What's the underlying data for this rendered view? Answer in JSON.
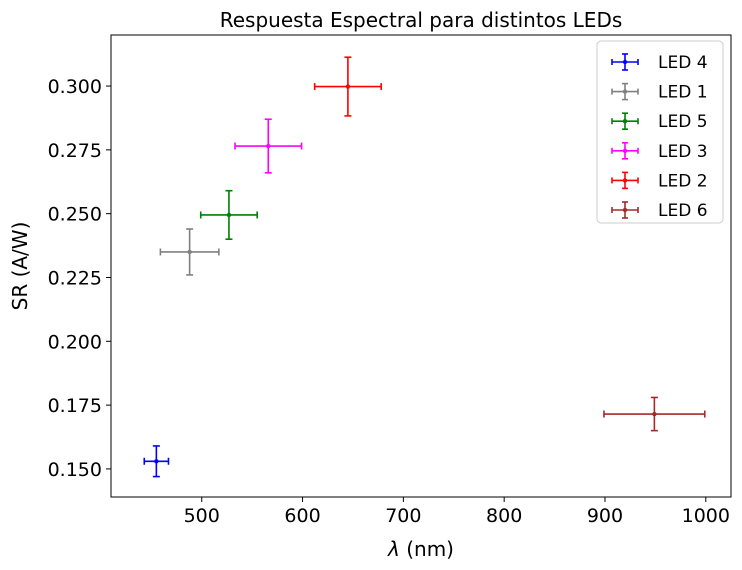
{
  "chart_data": {
    "type": "scatter",
    "title": "Respuesta Espectral para distintos LEDs",
    "xlabel_symbol": "λ",
    "xlabel_unit": " (nm)",
    "ylabel": "SR (A/W)",
    "xlim": [
      410,
      1025
    ],
    "ylim": [
      0.139,
      0.32
    ],
    "xticks": [
      "500",
      "600",
      "700",
      "800",
      "900",
      "1000"
    ],
    "xtick_values": [
      500,
      600,
      700,
      800,
      900,
      1000
    ],
    "yticks": [
      "0.150",
      "0.175",
      "0.200",
      "0.225",
      "0.250",
      "0.275",
      "0.300"
    ],
    "ytick_values": [
      0.15,
      0.175,
      0.2,
      0.225,
      0.25,
      0.275,
      0.3
    ],
    "grid": false,
    "legend_position": "top-right",
    "series": [
      {
        "name": "LED 4",
        "color": "#0000ff",
        "x": 455,
        "y": 0.153,
        "xerr": 12,
        "yerr": 0.006
      },
      {
        "name": "LED 1",
        "color": "#808080",
        "x": 488,
        "y": 0.235,
        "xerr": 29,
        "yerr": 0.009
      },
      {
        "name": "LED 5",
        "color": "#008000",
        "x": 527,
        "y": 0.2495,
        "xerr": 28,
        "yerr": 0.0095
      },
      {
        "name": "LED 3",
        "color": "#ff00ff",
        "x": 566,
        "y": 0.2765,
        "xerr": 33,
        "yerr": 0.0105
      },
      {
        "name": "LED 2",
        "color": "#ff0000",
        "x": 645,
        "y": 0.2998,
        "xerr": 33,
        "yerr": 0.0115
      },
      {
        "name": "LED 6",
        "color": "#a52a2a",
        "x": 949,
        "y": 0.1715,
        "xerr": 50,
        "yerr": 0.0065
      }
    ]
  }
}
